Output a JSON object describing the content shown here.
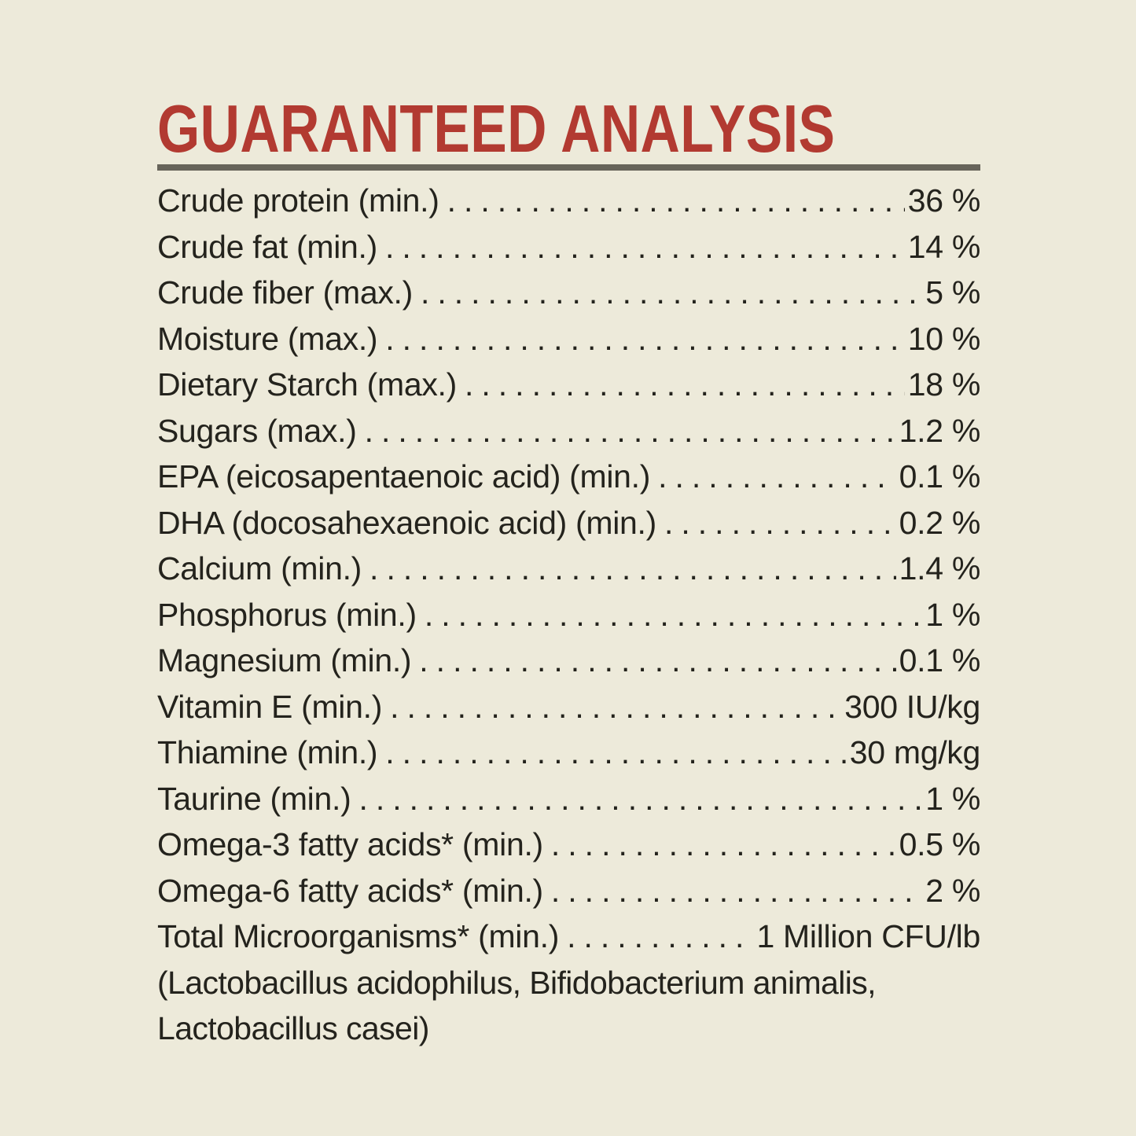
{
  "page": {
    "background_color": "#edeada",
    "text_color": "#24231d"
  },
  "header": {
    "title": "GUARANTEED ANALYSIS",
    "title_color": "#b23a31",
    "rule_color": "#67645a"
  },
  "analysis": {
    "rows": [
      {
        "label": "Crude protein (min.)",
        "value": "36 %"
      },
      {
        "label": "Crude fat (min.)",
        "value": "14 %"
      },
      {
        "label": "Crude fiber (max.)",
        "value": "5 %"
      },
      {
        "label": "Moisture (max.)",
        "value": "10 %"
      },
      {
        "label": "Dietary Starch (max.)",
        "value": "18 %"
      },
      {
        "label": "Sugars (max.)",
        "value": "1.2 %"
      },
      {
        "label": "EPA (eicosapentaenoic acid) (min.)",
        "value": "0.1 %"
      },
      {
        "label": "DHA (docosahexaenoic acid) (min.)",
        "value": "0.2 %"
      },
      {
        "label": "Calcium (min.)",
        "value": "1.4 %"
      },
      {
        "label": "Phosphorus (min.)",
        "value": "1 %"
      },
      {
        "label": "Magnesium (min.)",
        "value": "0.1 %"
      },
      {
        "label": "Vitamin E (min.)",
        "value": "300 IU/kg"
      },
      {
        "label": "Thiamine (min.)",
        "value": "30 mg/kg"
      },
      {
        "label": "Taurine (min.)",
        "value": "1 %"
      },
      {
        "label": "Omega-3 fatty acids* (min.)",
        "value": "0.5 %"
      },
      {
        "label": "Omega-6 fatty acids* (min.)",
        "value": "2 %"
      },
      {
        "label": "Total Microorganisms* (min.)",
        "value": "1 Million CFU/lb"
      }
    ],
    "footnote_lines": [
      "(Lactobacillus acidophilus, Bifidobacterium animalis,",
      "Lactobacillus casei)"
    ]
  }
}
